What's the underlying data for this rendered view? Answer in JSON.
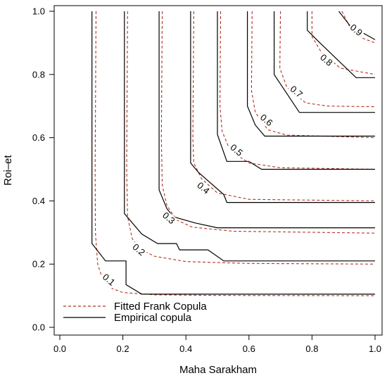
{
  "chart_data": {
    "type": "contour",
    "xlabel": "Maha Sarakham",
    "ylabel": "Roi–et",
    "xlim": [
      0.0,
      1.0
    ],
    "ylim": [
      0.0,
      1.0
    ],
    "xticks": [
      "0.0",
      "0.2",
      "0.4",
      "0.6",
      "0.8",
      "1.0"
    ],
    "yticks": [
      "0.0",
      "0.2",
      "0.4",
      "0.6",
      "0.8",
      "1.0"
    ],
    "grid": false,
    "legend_position": "bottom-left",
    "colors": {
      "fitted": "#b5321e",
      "empirical": "#000000"
    },
    "series": [
      {
        "name": "Fitted Frank Copula",
        "style": "dashed",
        "color": "#b5321e"
      },
      {
        "name": "Empirical copula",
        "style": "solid",
        "color": "#000000"
      }
    ],
    "contour_levels": [
      {
        "level": 0.1,
        "label": "0.1",
        "label_at": [
          0.155,
          0.15
        ],
        "empirical": [
          [
            0.102,
            1.0
          ],
          [
            0.102,
            0.265
          ],
          [
            0.145,
            0.21
          ],
          [
            0.21,
            0.21
          ],
          [
            0.21,
            0.135
          ],
          [
            0.26,
            0.105
          ],
          [
            1.0,
            0.105
          ]
        ],
        "fitted": [
          [
            0.115,
            1.0
          ],
          [
            0.112,
            0.5
          ],
          [
            0.113,
            0.3
          ],
          [
            0.12,
            0.2
          ],
          [
            0.135,
            0.155
          ],
          [
            0.16,
            0.125
          ],
          [
            0.2,
            0.11
          ],
          [
            0.3,
            0.103
          ],
          [
            0.5,
            0.101
          ],
          [
            1.0,
            0.1
          ]
        ]
      },
      {
        "level": 0.2,
        "label": "0.2",
        "label_at": [
          0.25,
          0.245
        ],
        "empirical": [
          [
            0.205,
            1.0
          ],
          [
            0.205,
            0.36
          ],
          [
            0.26,
            0.295
          ],
          [
            0.31,
            0.265
          ],
          [
            0.37,
            0.265
          ],
          [
            0.38,
            0.245
          ],
          [
            0.47,
            0.245
          ],
          [
            0.52,
            0.21
          ],
          [
            1.0,
            0.21
          ]
        ],
        "fitted": [
          [
            0.215,
            1.0
          ],
          [
            0.212,
            0.5
          ],
          [
            0.215,
            0.35
          ],
          [
            0.23,
            0.28
          ],
          [
            0.26,
            0.245
          ],
          [
            0.3,
            0.225
          ],
          [
            0.4,
            0.208
          ],
          [
            0.6,
            0.202
          ],
          [
            1.0,
            0.2
          ]
        ]
      },
      {
        "level": 0.3,
        "label": "0.3",
        "label_at": [
          0.345,
          0.345
        ],
        "empirical": [
          [
            0.315,
            1.0
          ],
          [
            0.315,
            0.435
          ],
          [
            0.34,
            0.375
          ],
          [
            0.36,
            0.35
          ],
          [
            0.43,
            0.33
          ],
          [
            0.5,
            0.315
          ],
          [
            1.0,
            0.315
          ]
        ],
        "fitted": [
          [
            0.325,
            1.0
          ],
          [
            0.322,
            0.6
          ],
          [
            0.325,
            0.45
          ],
          [
            0.34,
            0.385
          ],
          [
            0.37,
            0.34
          ],
          [
            0.42,
            0.317
          ],
          [
            0.55,
            0.304
          ],
          [
            1.0,
            0.298
          ]
        ]
      },
      {
        "level": 0.4,
        "label": "0.4",
        "label_at": [
          0.455,
          0.44
        ],
        "empirical": [
          [
            0.415,
            1.0
          ],
          [
            0.415,
            0.52
          ],
          [
            0.44,
            0.49
          ],
          [
            0.52,
            0.42
          ],
          [
            0.53,
            0.395
          ],
          [
            1.0,
            0.395
          ]
        ],
        "fitted": [
          [
            0.425,
            1.0
          ],
          [
            0.422,
            0.6
          ],
          [
            0.425,
            0.52
          ],
          [
            0.45,
            0.47
          ],
          [
            0.5,
            0.425
          ],
          [
            0.6,
            0.405
          ],
          [
            1.0,
            0.4
          ]
        ]
      },
      {
        "level": 0.5,
        "label": "0.5",
        "label_at": [
          0.56,
          0.56
        ],
        "empirical": [
          [
            0.5,
            1.0
          ],
          [
            0.5,
            0.61
          ],
          [
            0.53,
            0.525
          ],
          [
            0.6,
            0.525
          ],
          [
            0.64,
            0.5
          ],
          [
            1.0,
            0.5
          ]
        ],
        "fitted": [
          [
            0.51,
            1.0
          ],
          [
            0.508,
            0.7
          ],
          [
            0.515,
            0.62
          ],
          [
            0.54,
            0.56
          ],
          [
            0.6,
            0.52
          ],
          [
            0.7,
            0.505
          ],
          [
            1.0,
            0.5
          ]
        ]
      },
      {
        "level": 0.6,
        "label": "0.6",
        "label_at": [
          0.655,
          0.655
        ],
        "empirical": [
          [
            0.595,
            1.0
          ],
          [
            0.595,
            0.7
          ],
          [
            0.62,
            0.64
          ],
          [
            0.65,
            0.605
          ],
          [
            1.0,
            0.605
          ]
        ],
        "fitted": [
          [
            0.61,
            1.0
          ],
          [
            0.608,
            0.75
          ],
          [
            0.62,
            0.68
          ],
          [
            0.66,
            0.625
          ],
          [
            0.72,
            0.608
          ],
          [
            1.0,
            0.6
          ]
        ]
      },
      {
        "level": 0.7,
        "label": "0.7",
        "label_at": [
          0.75,
          0.745
        ],
        "empirical": [
          [
            0.68,
            1.0
          ],
          [
            0.68,
            0.8
          ],
          [
            0.76,
            0.68
          ],
          [
            1.0,
            0.68
          ]
        ],
        "fitted": [
          [
            0.7,
            1.0
          ],
          [
            0.698,
            0.82
          ],
          [
            0.72,
            0.76
          ],
          [
            0.78,
            0.71
          ],
          [
            0.85,
            0.7
          ],
          [
            1.0,
            0.698
          ]
        ]
      },
      {
        "level": 0.8,
        "label": "0.8",
        "label_at": [
          0.845,
          0.845
        ],
        "empirical": [
          [
            0.785,
            1.0
          ],
          [
            0.785,
            0.94
          ],
          [
            0.82,
            0.905
          ],
          [
            0.94,
            0.79
          ],
          [
            1.0,
            0.79
          ]
        ],
        "fitted": [
          [
            0.8,
            1.0
          ],
          [
            0.8,
            0.92
          ],
          [
            0.83,
            0.87
          ],
          [
            0.89,
            0.82
          ],
          [
            1.0,
            0.8
          ]
        ]
      },
      {
        "level": 0.9,
        "label": "0.9",
        "label_at": [
          0.94,
          0.94
        ],
        "empirical": [
          [
            0.885,
            1.0
          ],
          [
            0.92,
            0.955
          ],
          [
            1.0,
            0.91
          ]
        ],
        "fitted": [
          [
            0.895,
            1.0
          ],
          [
            0.92,
            0.95
          ],
          [
            0.96,
            0.915
          ],
          [
            1.0,
            0.9
          ]
        ]
      }
    ]
  }
}
